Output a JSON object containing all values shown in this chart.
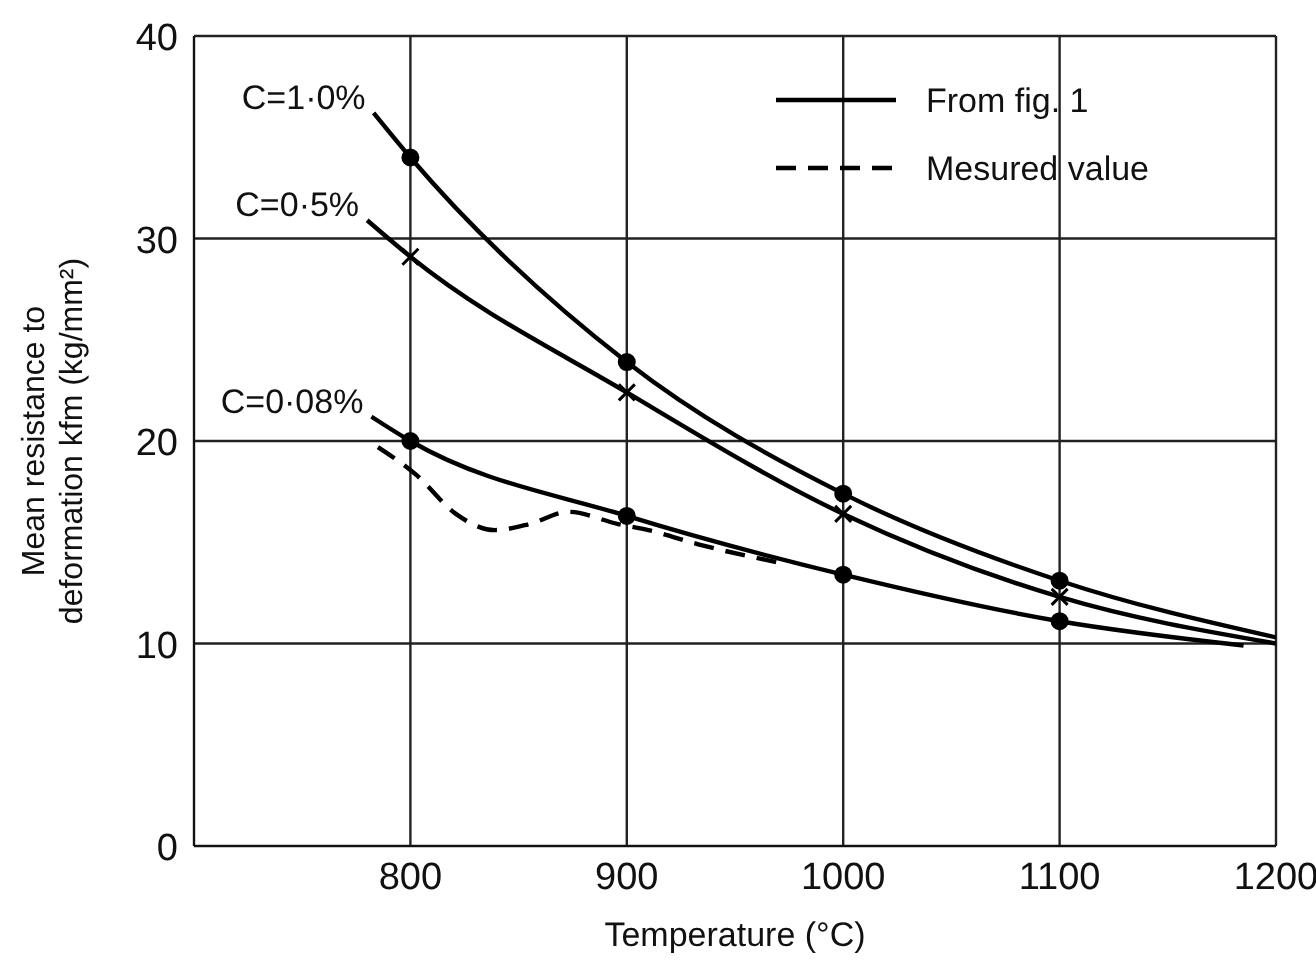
{
  "chart_data": {
    "type": "line",
    "xlabel": "Temperature   (°C)",
    "ylabel": "Mean resistance to\ndeformation kfm  (kg/mm²)",
    "xlim": [
      700,
      1200
    ],
    "xticks": [
      800,
      900,
      1000,
      1100,
      1200
    ],
    "ylim": [
      0,
      40
    ],
    "yticks": [
      0,
      10,
      20,
      30,
      40
    ],
    "grid": true,
    "legend": "top right",
    "annotations": [
      "C=1·0%",
      "C=0·5%",
      "C=0·08%"
    ],
    "series": [
      {
        "name": "From fig. 1",
        "color": "#000000",
        "line_style": "solid",
        "x": [
          783,
          800,
          900,
          1000,
          1100,
          1200
        ],
        "values": [
          36.2,
          34.0,
          23.9,
          17.4,
          13.1,
          10.3
        ]
      },
      {
        "color": "#000000",
        "line_style": "solid",
        "x": [
          780,
          800,
          900,
          1000,
          1100,
          1200
        ],
        "values": [
          30.9,
          29.1,
          22.4,
          16.4,
          12.3,
          10.0
        ]
      },
      {
        "color": "#000000",
        "line_style": "solid",
        "x": [
          782,
          800,
          900,
          1000,
          1100,
          1185
        ],
        "values": [
          21.2,
          20.0,
          16.3,
          13.4,
          11.1,
          9.9
        ]
      },
      {
        "name": "Mesured value",
        "color": "#000000",
        "line_style": "dashed",
        "x": [
          785,
          803,
          821,
          839,
          855,
          873,
          896,
          910,
          933,
          970
        ],
        "values": [
          19.7,
          18.3,
          16.4,
          15.6,
          15.9,
          16.5,
          15.9,
          15.6,
          14.9,
          14.0
        ]
      },
      {
        "type": "scatter",
        "color": "#000000",
        "marker": "circle",
        "x": [
          800,
          900,
          1000,
          1100
        ],
        "values": [
          34.0,
          23.9,
          17.4,
          13.1
        ]
      },
      {
        "type": "scatter",
        "color": "#000000",
        "marker": "cross",
        "x": [
          800,
          900,
          1000,
          1100
        ],
        "values": [
          29.1,
          22.4,
          16.4,
          12.3
        ]
      },
      {
        "type": "scatter",
        "color": "#000000",
        "marker": "circle",
        "x": [
          800,
          900,
          1000,
          1100
        ],
        "values": [
          20.0,
          16.3,
          13.4,
          11.1
        ]
      }
    ]
  }
}
